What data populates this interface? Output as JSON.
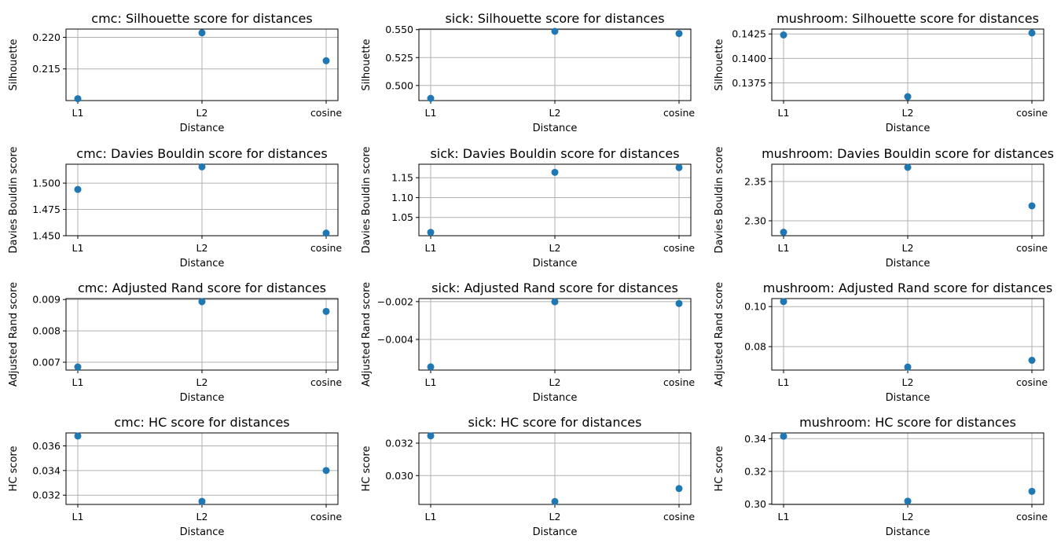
{
  "chart_data": [
    {
      "type": "scatter",
      "title": "cmc: Silhouette score for distances",
      "xlabel": "Distance",
      "ylabel": "Silhouette",
      "categories": [
        "L1",
        "L2",
        "cosine"
      ],
      "values": [
        0.2103,
        0.2207,
        0.2163
      ],
      "ylim": [
        0.21,
        0.2213
      ],
      "yticks": [
        0.215,
        0.22
      ],
      "ytick_labels": [
        "0.215",
        "0.220"
      ],
      "grid": true
    },
    {
      "type": "scatter",
      "title": "sick: Silhouette score for distances",
      "xlabel": "Distance",
      "ylabel": "Silhouette",
      "categories": [
        "L1",
        "L2",
        "cosine"
      ],
      "values": [
        0.4885,
        0.5485,
        0.5465
      ],
      "ylim": [
        0.4865,
        0.5505
      ],
      "yticks": [
        0.5,
        0.525,
        0.55
      ],
      "ytick_labels": [
        "0.500",
        "0.525",
        "0.550"
      ],
      "grid": true
    },
    {
      "type": "scatter",
      "title": "mushroom: Silhouette score for distances",
      "xlabel": "Distance",
      "ylabel": "Silhouette",
      "categories": [
        "L1",
        "L2",
        "cosine"
      ],
      "values": [
        0.1424,
        0.1361,
        0.1426
      ],
      "ylim": [
        0.1357,
        0.143
      ],
      "yticks": [
        0.1375,
        0.14,
        0.1425
      ],
      "ytick_labels": [
        "0.1375",
        "0.1400",
        "0.1425"
      ],
      "grid": true
    },
    {
      "type": "scatter",
      "title": "cmc: Davies Bouldin score for distances",
      "xlabel": "Distance",
      "ylabel": "Davies Bouldin score",
      "categories": [
        "L1",
        "L2",
        "cosine"
      ],
      "values": [
        1.494,
        1.5155,
        1.4525
      ],
      "ylim": [
        1.45,
        1.518
      ],
      "yticks": [
        1.45,
        1.475,
        1.5
      ],
      "ytick_labels": [
        "1.450",
        "1.475",
        "1.500"
      ],
      "grid": true
    },
    {
      "type": "scatter",
      "title": "sick: Davies Bouldin score for distances",
      "xlabel": "Distance",
      "ylabel": "Davies Bouldin score",
      "categories": [
        "L1",
        "L2",
        "cosine"
      ],
      "values": [
        1.0125,
        1.1635,
        1.1755
      ],
      "ylim": [
        1.004,
        1.184
      ],
      "yticks": [
        1.05,
        1.1,
        1.15
      ],
      "ytick_labels": [
        "1.05",
        "1.10",
        "1.15"
      ],
      "grid": true
    },
    {
      "type": "scatter",
      "title": "mushroom: Davies Bouldin score for distances",
      "xlabel": "Distance",
      "ylabel": "Davies Bouldin score",
      "categories": [
        "L1",
        "L2",
        "cosine"
      ],
      "values": [
        2.2855,
        2.368,
        2.319
      ],
      "ylim": [
        2.281,
        2.372
      ],
      "yticks": [
        2.3,
        2.35
      ],
      "ytick_labels": [
        "2.30",
        "2.35"
      ],
      "grid": true
    },
    {
      "type": "scatter",
      "title": "cmc: Adjusted Rand score for distances",
      "xlabel": "Distance",
      "ylabel": "Adjusted Rand score",
      "categories": [
        "L1",
        "L2",
        "cosine"
      ],
      "values": [
        0.00685,
        0.00893,
        0.00862
      ],
      "ylim": [
        0.00675,
        0.00903
      ],
      "yticks": [
        0.007,
        0.008,
        0.009
      ],
      "ytick_labels": [
        "0.007",
        "0.008",
        "0.009"
      ],
      "grid": true
    },
    {
      "type": "scatter",
      "title": "sick: Adjusted Rand score for distances",
      "xlabel": "Distance",
      "ylabel": "Adjusted Rand score",
      "categories": [
        "L1",
        "L2",
        "cosine"
      ],
      "values": [
        -0.00545,
        -0.00201,
        -0.0021
      ],
      "ylim": [
        -0.00562,
        -0.00184
      ],
      "yticks": [
        -0.004,
        -0.002
      ],
      "ytick_labels": [
        "−0.004",
        "−0.002"
      ],
      "grid": true
    },
    {
      "type": "scatter",
      "title": "mushroom: Adjusted Rand score for distances",
      "xlabel": "Distance",
      "ylabel": "Adjusted Rand score",
      "categories": [
        "L1",
        "L2",
        "cosine"
      ],
      "values": [
        0.1025,
        0.0698,
        0.0732
      ],
      "ylim": [
        0.0683,
        0.104
      ],
      "yticks": [
        0.08,
        0.1
      ],
      "ytick_labels": [
        "0.08",
        "0.10"
      ],
      "grid": true
    },
    {
      "type": "scatter",
      "title": "cmc: HC score for distances",
      "xlabel": "Distance",
      "ylabel": "HC score",
      "categories": [
        "L1",
        "L2",
        "cosine"
      ],
      "values": [
        0.0368,
        0.0315,
        0.034
      ],
      "ylim": [
        0.03125,
        0.03705
      ],
      "yticks": [
        0.032,
        0.034,
        0.036
      ],
      "ytick_labels": [
        "0.032",
        "0.034",
        "0.036"
      ],
      "grid": true
    },
    {
      "type": "scatter",
      "title": "sick: HC score for distances",
      "xlabel": "Distance",
      "ylabel": "HC score",
      "categories": [
        "L1",
        "L2",
        "cosine"
      ],
      "values": [
        0.03245,
        0.0284,
        0.0292
      ],
      "ylim": [
        0.02822,
        0.03263
      ],
      "yticks": [
        0.03,
        0.032
      ],
      "ytick_labels": [
        "0.030",
        "0.032"
      ],
      "grid": true
    },
    {
      "type": "scatter",
      "title": "mushroom: HC score for distances",
      "xlabel": "Distance",
      "ylabel": "HC score",
      "categories": [
        "L1",
        "L2",
        "cosine"
      ],
      "values": [
        0.3415,
        0.3018,
        0.3078
      ],
      "ylim": [
        0.2998,
        0.3435
      ],
      "yticks": [
        0.3,
        0.32,
        0.34
      ],
      "ytick_labels": [
        "0.30",
        "0.32",
        "0.34"
      ],
      "grid": true
    }
  ]
}
